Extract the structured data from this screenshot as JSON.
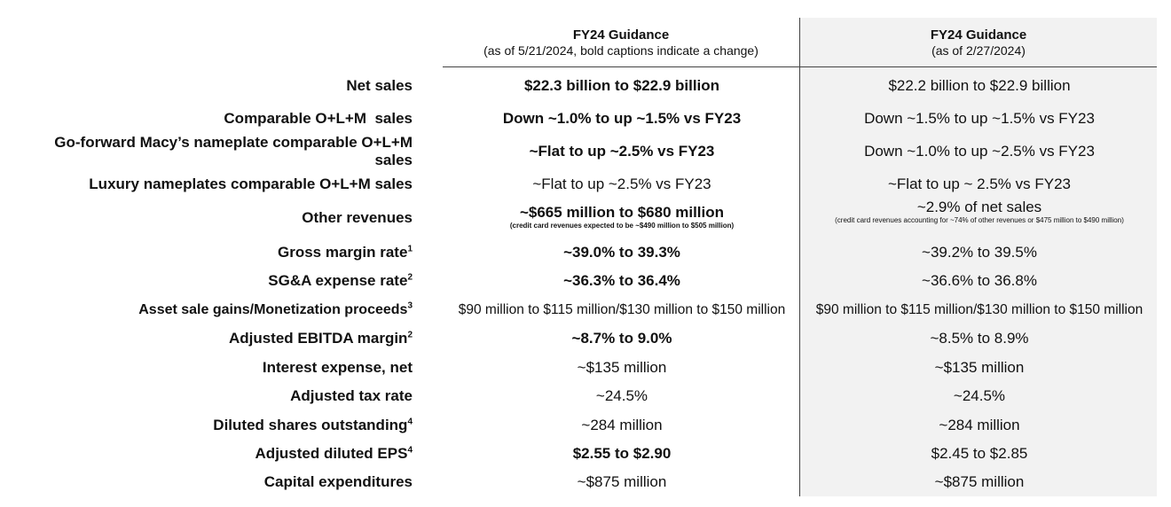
{
  "header": {
    "col1_title": "FY24 Guidance",
    "col1_subtitle": "(as of 5/21/2024, bold captions indicate a change)",
    "col2_title": "FY24 Guidance",
    "col2_subtitle": "(as of 2/27/2024)"
  },
  "rows": [
    {
      "label": "Net sales",
      "sup": "",
      "current": "$22.3 billion to $22.9 billion",
      "prior": "$22.2 billion to $22.9 billion"
    },
    {
      "label": "Comparable O+L+M  sales",
      "sup": "",
      "current": "Down ~1.0% to up ~1.5% vs FY23",
      "prior": "Down ~1.5% to up ~1.5% vs FY23"
    },
    {
      "label_line1": "Go-forward Macy’s nameplate comparable O+L+M",
      "label_line2": "sales",
      "current": "~Flat to up ~2.5% vs FY23",
      "prior": "Down ~1.0% to up ~2.5% vs FY23"
    },
    {
      "label": "Luxury nameplates comparable O+L+M sales",
      "sup": "",
      "current": "~Flat to up ~2.5% vs FY23",
      "prior": "~Flat to up ~ 2.5% vs FY23"
    },
    {
      "label": "Other revenues",
      "sup": "",
      "current": "~$665 million to $680 million",
      "current_note": "(credit card revenues expected to be ~$490 million to $505 million)",
      "prior": "~2.9% of net sales",
      "prior_note": "(credit card revenues accounting for ~74% of other revenues or $475 million to $490 million)"
    },
    {
      "label": "Gross margin rate",
      "sup": "1",
      "current": "~39.0% to 39.3%",
      "prior": "~39.2% to 39.5%"
    },
    {
      "label": "SG&A expense rate",
      "sup": "2",
      "current": "~36.3% to 36.4%",
      "prior": "~36.6% to 36.8%"
    },
    {
      "label": "Asset sale gains/Monetization proceeds",
      "sup": "3",
      "current": "$90 million to $115 million/$130 million to $150 million",
      "prior": "$90 million to $115 million/$130 million to $150 million"
    },
    {
      "label": "Adjusted EBITDA margin",
      "sup": "2",
      "current": "~8.7% to 9.0%",
      "prior": "~8.5% to 8.9%"
    },
    {
      "label": "Interest expense, net",
      "sup": "",
      "current": "~$135 million",
      "prior": "~$135 million"
    },
    {
      "label": "Adjusted tax rate",
      "sup": "",
      "current": "~24.5%",
      "prior": "~24.5%"
    },
    {
      "label": "Diluted shares outstanding",
      "sup": "4",
      "current": "~284 million",
      "prior": "~284 million"
    },
    {
      "label": "Adjusted diluted EPS",
      "sup": "4",
      "current": "$2.55 to $2.90",
      "prior": "$2.45 to $2.85"
    },
    {
      "label": "Capital expenditures",
      "sup": "",
      "current": "~$875 million",
      "prior": "~$875 million"
    }
  ]
}
